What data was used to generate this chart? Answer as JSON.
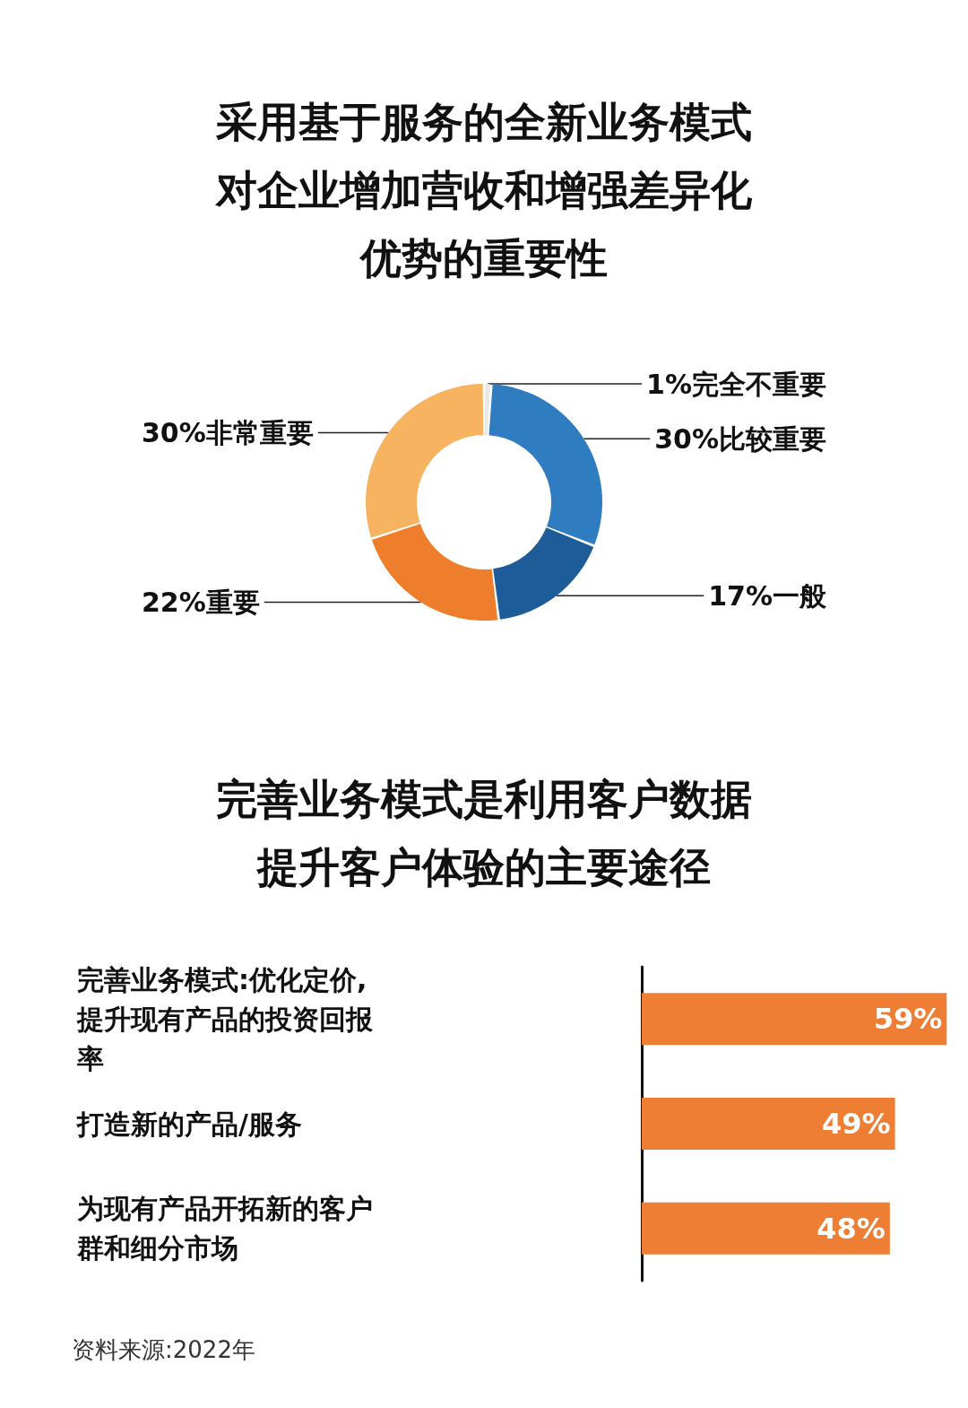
{
  "chart_data": [
    {
      "type": "donut",
      "title": "采用基于服务的全新业务模式对企业增加营收和增强差异化优势的重要性",
      "categories": [
        "完全不重要",
        "比较重要",
        "一般",
        "重要",
        "非常重要"
      ],
      "values": [
        1,
        30,
        17,
        22,
        30
      ],
      "colors": [
        "#e8e8e8",
        "#2f7dc0",
        "#1d5c98",
        "#ee7e2b",
        "#f7b35f"
      ],
      "value_labels": [
        "1%",
        "30%",
        "17%",
        "22%",
        "30%"
      ],
      "legend": false
    },
    {
      "type": "bar",
      "orientation": "horizontal",
      "title": "完善业务模式是利用客户数据提升客户体验的主要途径",
      "categories": [
        "完善业务模式:优化定价,提升现有产品的投资回报率",
        "打造新的产品/服务",
        "为现有产品开拓新的客户群和细分市场"
      ],
      "values": [
        59,
        49,
        48
      ],
      "color": "#ee7e33",
      "value_labels": [
        "59%",
        "49%",
        "48%"
      ],
      "annotations": [
        "资料来源:2022年"
      ],
      "legend": false
    }
  ]
}
